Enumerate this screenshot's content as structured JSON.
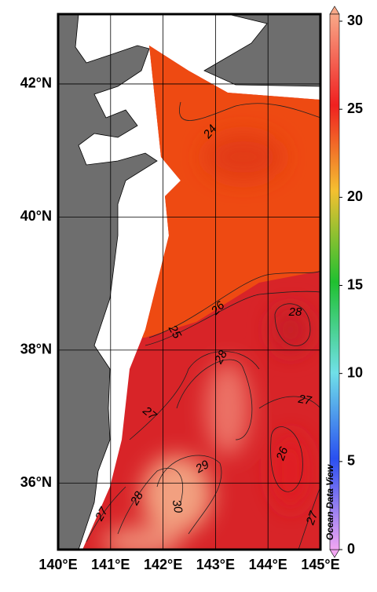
{
  "map": {
    "xlim": [
      140,
      145
    ],
    "ylim": [
      35,
      43.05
    ],
    "xticks": [
      {
        "value": 140,
        "label": "140°E"
      },
      {
        "value": 141,
        "label": "141°E"
      },
      {
        "value": 142,
        "label": "142°E"
      },
      {
        "value": 143,
        "label": "143°E"
      },
      {
        "value": 144,
        "label": "144°E"
      },
      {
        "value": 145,
        "label": "145°E"
      }
    ],
    "yticks": [
      {
        "value": 36,
        "label": "36°N"
      },
      {
        "value": 38,
        "label": "38°N"
      },
      {
        "value": 40,
        "label": "40°N"
      },
      {
        "value": 42,
        "label": "42°N"
      }
    ],
    "grid": true,
    "colorbar": {
      "lim": [
        0,
        30
      ],
      "ticks": [
        0,
        5,
        10,
        15,
        20,
        25,
        30
      ]
    },
    "contour_labels": [
      24,
      26,
      25,
      28,
      28,
      27,
      27,
      26,
      29,
      28,
      27,
      30,
      27
    ],
    "watermark": "Ocean Data View"
  }
}
